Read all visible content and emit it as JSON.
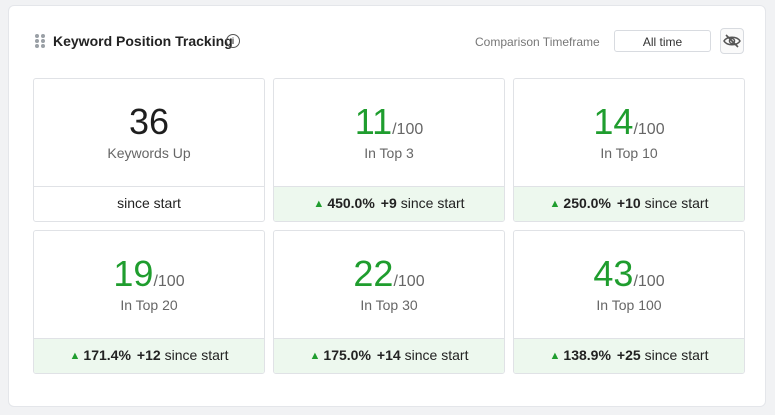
{
  "widget": {
    "title": "Keyword Position Tracking",
    "info_icon": "info-circle-icon",
    "timeframe_label": "Comparison Timeframe",
    "timeframe_value": "All time",
    "hide_icon": "eye-off-icon",
    "accent_green": "#1f9d2e"
  },
  "tiles": [
    {
      "value": "36",
      "denominator": "",
      "label": "Keywords Up",
      "change_percent": "",
      "change_delta": "",
      "since_text": "since start"
    },
    {
      "value": "11",
      "denominator": "/100",
      "label": "In Top 3",
      "change_percent": "450.0%",
      "change_delta": "+9",
      "since_text": "since start"
    },
    {
      "value": "14",
      "denominator": "/100",
      "label": "In Top 10",
      "change_percent": "250.0%",
      "change_delta": "+10",
      "since_text": "since start"
    },
    {
      "value": "19",
      "denominator": "/100",
      "label": "In Top 20",
      "change_percent": "171.4%",
      "change_delta": "+12",
      "since_text": "since start"
    },
    {
      "value": "22",
      "denominator": "/100",
      "label": "In Top 30",
      "change_percent": "175.0%",
      "change_delta": "+14",
      "since_text": "since start"
    },
    {
      "value": "43",
      "denominator": "/100",
      "label": "In Top 100",
      "change_percent": "138.9%",
      "change_delta": "+25",
      "since_text": "since start"
    }
  ]
}
